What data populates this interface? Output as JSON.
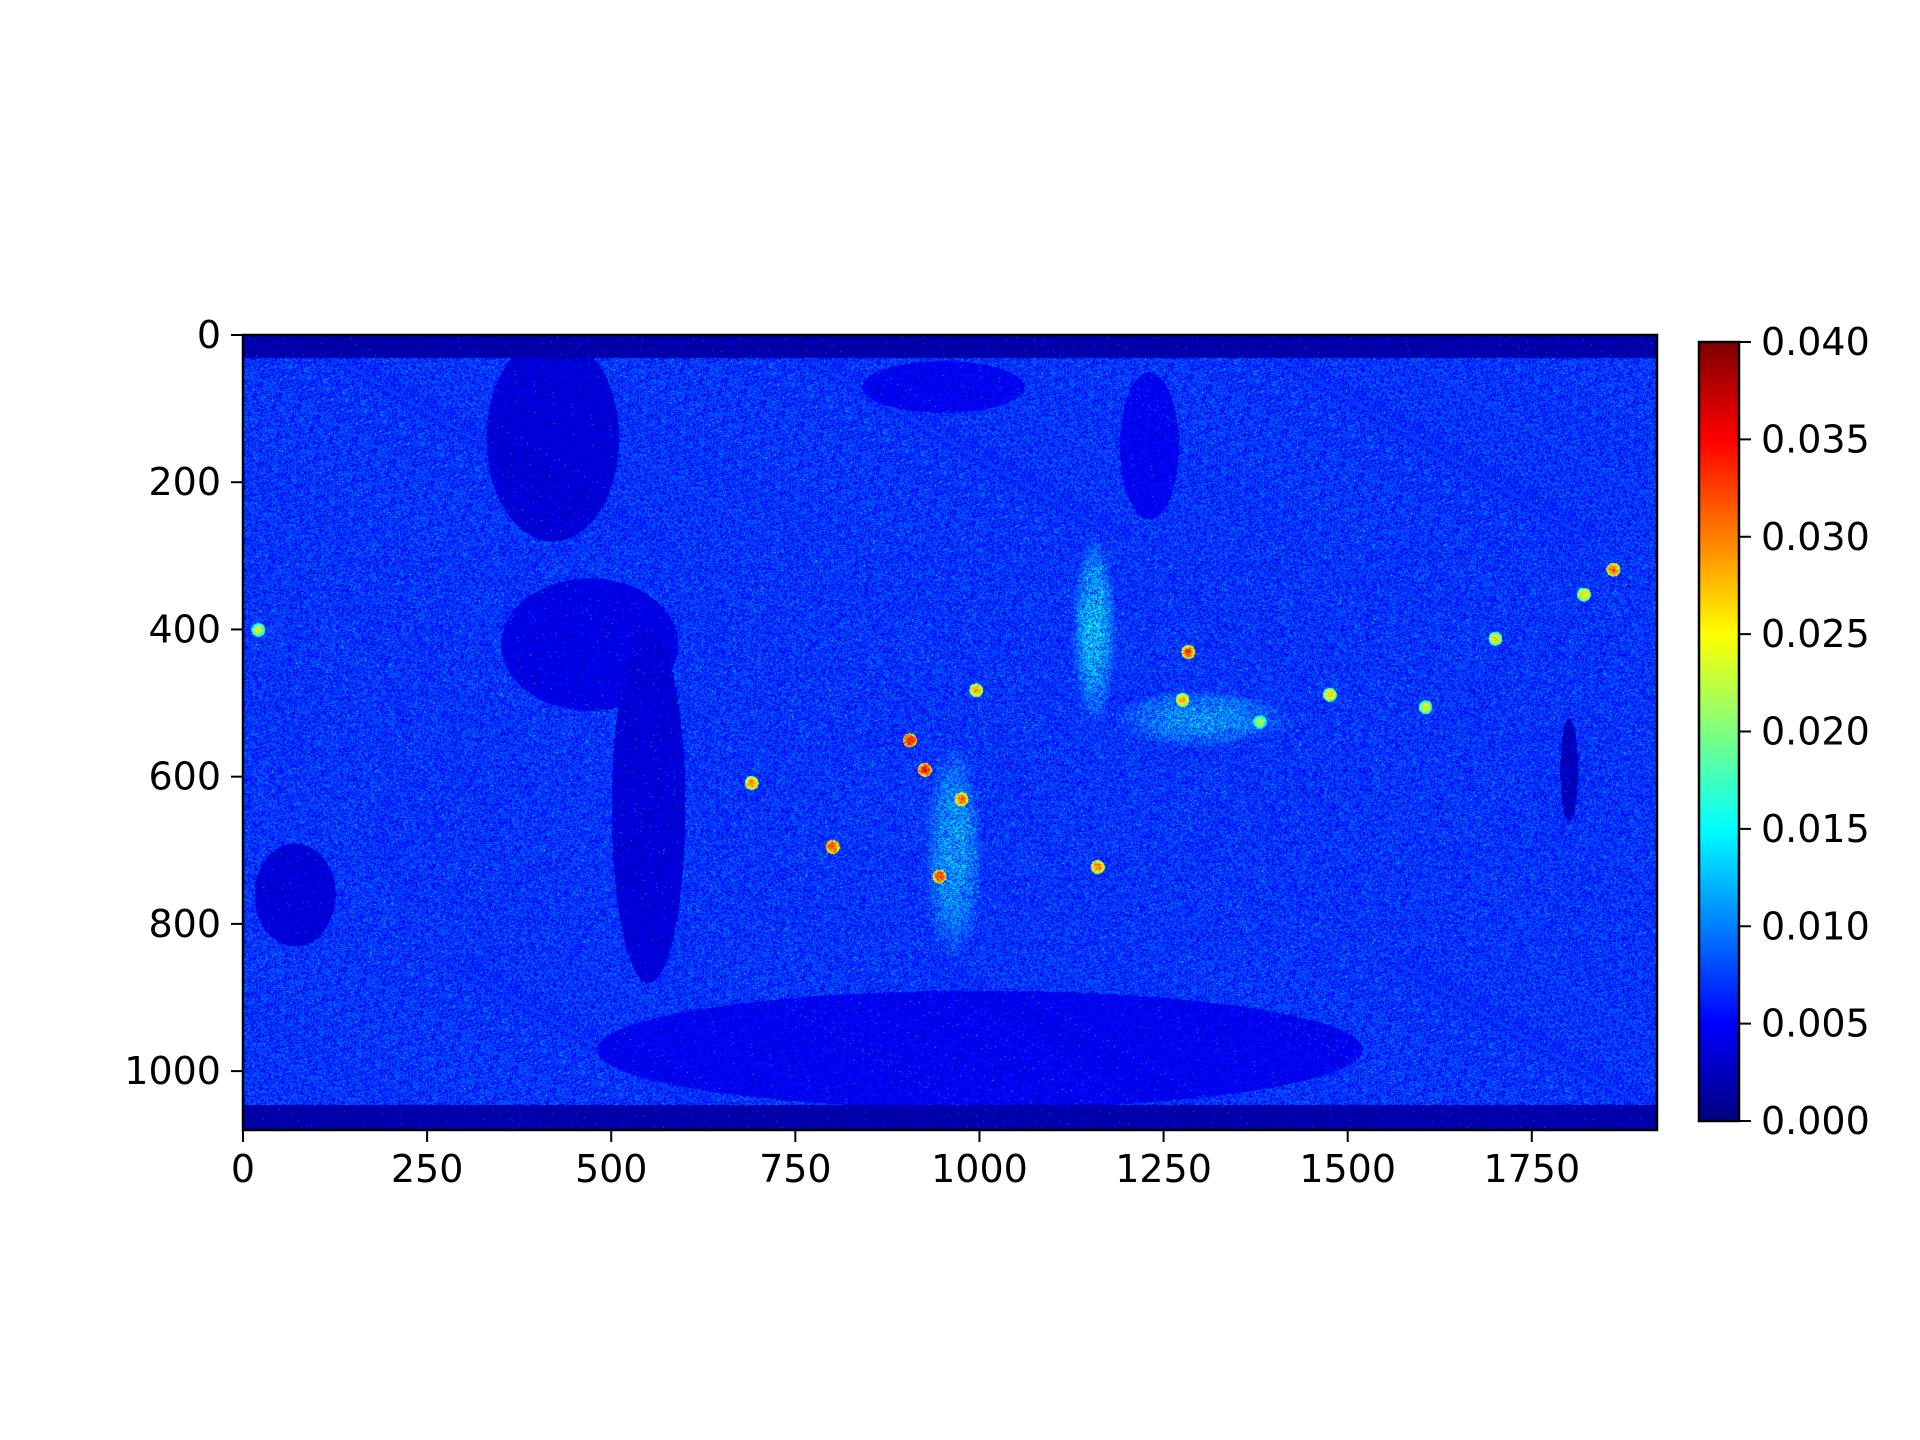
{
  "chart_data": {
    "type": "heatmap",
    "title": "",
    "xlabel": "",
    "ylabel": "",
    "colormap": "jet",
    "image_extent": {
      "width": 1920,
      "height": 1080
    },
    "xlim": [
      0,
      1920
    ],
    "ylim": [
      1080,
      0
    ],
    "x_ticks": [
      {
        "value": 0,
        "label": "0"
      },
      {
        "value": 250,
        "label": "250"
      },
      {
        "value": 500,
        "label": "500"
      },
      {
        "value": 750,
        "label": "750"
      },
      {
        "value": 1000,
        "label": "1000"
      },
      {
        "value": 1250,
        "label": "1250"
      },
      {
        "value": 1500,
        "label": "1500"
      },
      {
        "value": 1750,
        "label": "1750"
      }
    ],
    "y_ticks": [
      {
        "value": 0,
        "label": "0"
      },
      {
        "value": 200,
        "label": "200"
      },
      {
        "value": 400,
        "label": "400"
      },
      {
        "value": 600,
        "label": "600"
      },
      {
        "value": 800,
        "label": "800"
      },
      {
        "value": 1000,
        "label": "1000"
      }
    ],
    "colorbar": {
      "range": [
        0.0,
        0.04
      ],
      "ticks": [
        {
          "value": 0.0,
          "label": "0.000"
        },
        {
          "value": 0.005,
          "label": "0.005"
        },
        {
          "value": 0.01,
          "label": "0.010"
        },
        {
          "value": 0.015,
          "label": "0.015"
        },
        {
          "value": 0.02,
          "label": "0.020"
        },
        {
          "value": 0.025,
          "label": "0.025"
        },
        {
          "value": 0.03,
          "label": "0.030"
        },
        {
          "value": 0.035,
          "label": "0.035"
        },
        {
          "value": 0.04,
          "label": "0.040"
        }
      ]
    },
    "background_value": 0.006,
    "dark_bands": [
      {
        "y_from": 0,
        "y_to": 30,
        "value": 0.0015
      },
      {
        "y_from": 1045,
        "y_to": 1080,
        "value": 0.0015
      }
    ],
    "low_regions": [
      {
        "x": 420,
        "y": 140,
        "rx": 90,
        "ry": 140,
        "value": 0.003
      },
      {
        "x": 470,
        "y": 420,
        "rx": 120,
        "ry": 90,
        "value": 0.0035
      },
      {
        "x": 550,
        "y": 640,
        "rx": 50,
        "ry": 240,
        "value": 0.003
      },
      {
        "x": 950,
        "y": 70,
        "rx": 110,
        "ry": 35,
        "value": 0.004
      },
      {
        "x": 1230,
        "y": 150,
        "rx": 40,
        "ry": 100,
        "value": 0.004
      },
      {
        "x": 70,
        "y": 760,
        "rx": 55,
        "ry": 70,
        "value": 0.003
      },
      {
        "x": 1000,
        "y": 970,
        "rx": 520,
        "ry": 80,
        "value": 0.004
      },
      {
        "x": 1800,
        "y": 590,
        "rx": 12,
        "ry": 70,
        "value": 0.002
      }
    ],
    "hotspots": [
      {
        "x": 905,
        "y": 550,
        "value": 0.04
      },
      {
        "x": 925,
        "y": 590,
        "value": 0.04
      },
      {
        "x": 975,
        "y": 630,
        "value": 0.037
      },
      {
        "x": 945,
        "y": 735,
        "value": 0.038
      },
      {
        "x": 800,
        "y": 695,
        "value": 0.038
      },
      {
        "x": 690,
        "y": 608,
        "value": 0.034
      },
      {
        "x": 995,
        "y": 482,
        "value": 0.033
      },
      {
        "x": 1160,
        "y": 722,
        "value": 0.035
      },
      {
        "x": 1283,
        "y": 430,
        "value": 0.037
      },
      {
        "x": 1275,
        "y": 495,
        "value": 0.032
      },
      {
        "x": 1475,
        "y": 488,
        "value": 0.03
      },
      {
        "x": 1605,
        "y": 505,
        "value": 0.028
      },
      {
        "x": 1700,
        "y": 412,
        "value": 0.03
      },
      {
        "x": 1860,
        "y": 318,
        "value": 0.036
      },
      {
        "x": 1820,
        "y": 352,
        "value": 0.03
      },
      {
        "x": 1380,
        "y": 525,
        "value": 0.026
      },
      {
        "x": 20,
        "y": 400,
        "value": 0.027
      }
    ],
    "warm_streaks": [
      {
        "x": 1155,
        "y": 400,
        "rx": 30,
        "ry": 130,
        "value": 0.016
      },
      {
        "x": 965,
        "y": 700,
        "rx": 40,
        "ry": 150,
        "value": 0.014
      },
      {
        "x": 1300,
        "y": 520,
        "rx": 120,
        "ry": 40,
        "value": 0.013
      }
    ]
  }
}
